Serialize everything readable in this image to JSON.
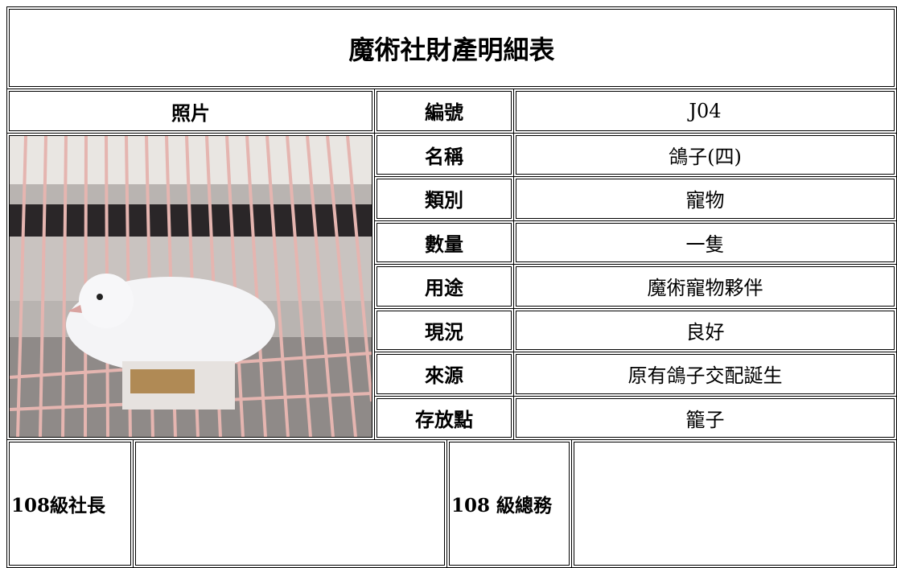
{
  "title": "魔術社財產明細表",
  "photo_label": "照片",
  "fields": [
    {
      "label": "編號",
      "value": "J04"
    },
    {
      "label": "名稱",
      "value": "鴿子(四)"
    },
    {
      "label": "類別",
      "value": "寵物"
    },
    {
      "label": "數量",
      "value": "一隻"
    },
    {
      "label": "用途",
      "value": "魔術寵物夥伴"
    },
    {
      "label": "現況",
      "value": "良好"
    },
    {
      "label": "來源",
      "value": "原有鴿子交配誕生"
    },
    {
      "label": "存放點",
      "value": "籠子"
    }
  ],
  "signatures": [
    "108級社長",
    "108 級總務"
  ]
}
